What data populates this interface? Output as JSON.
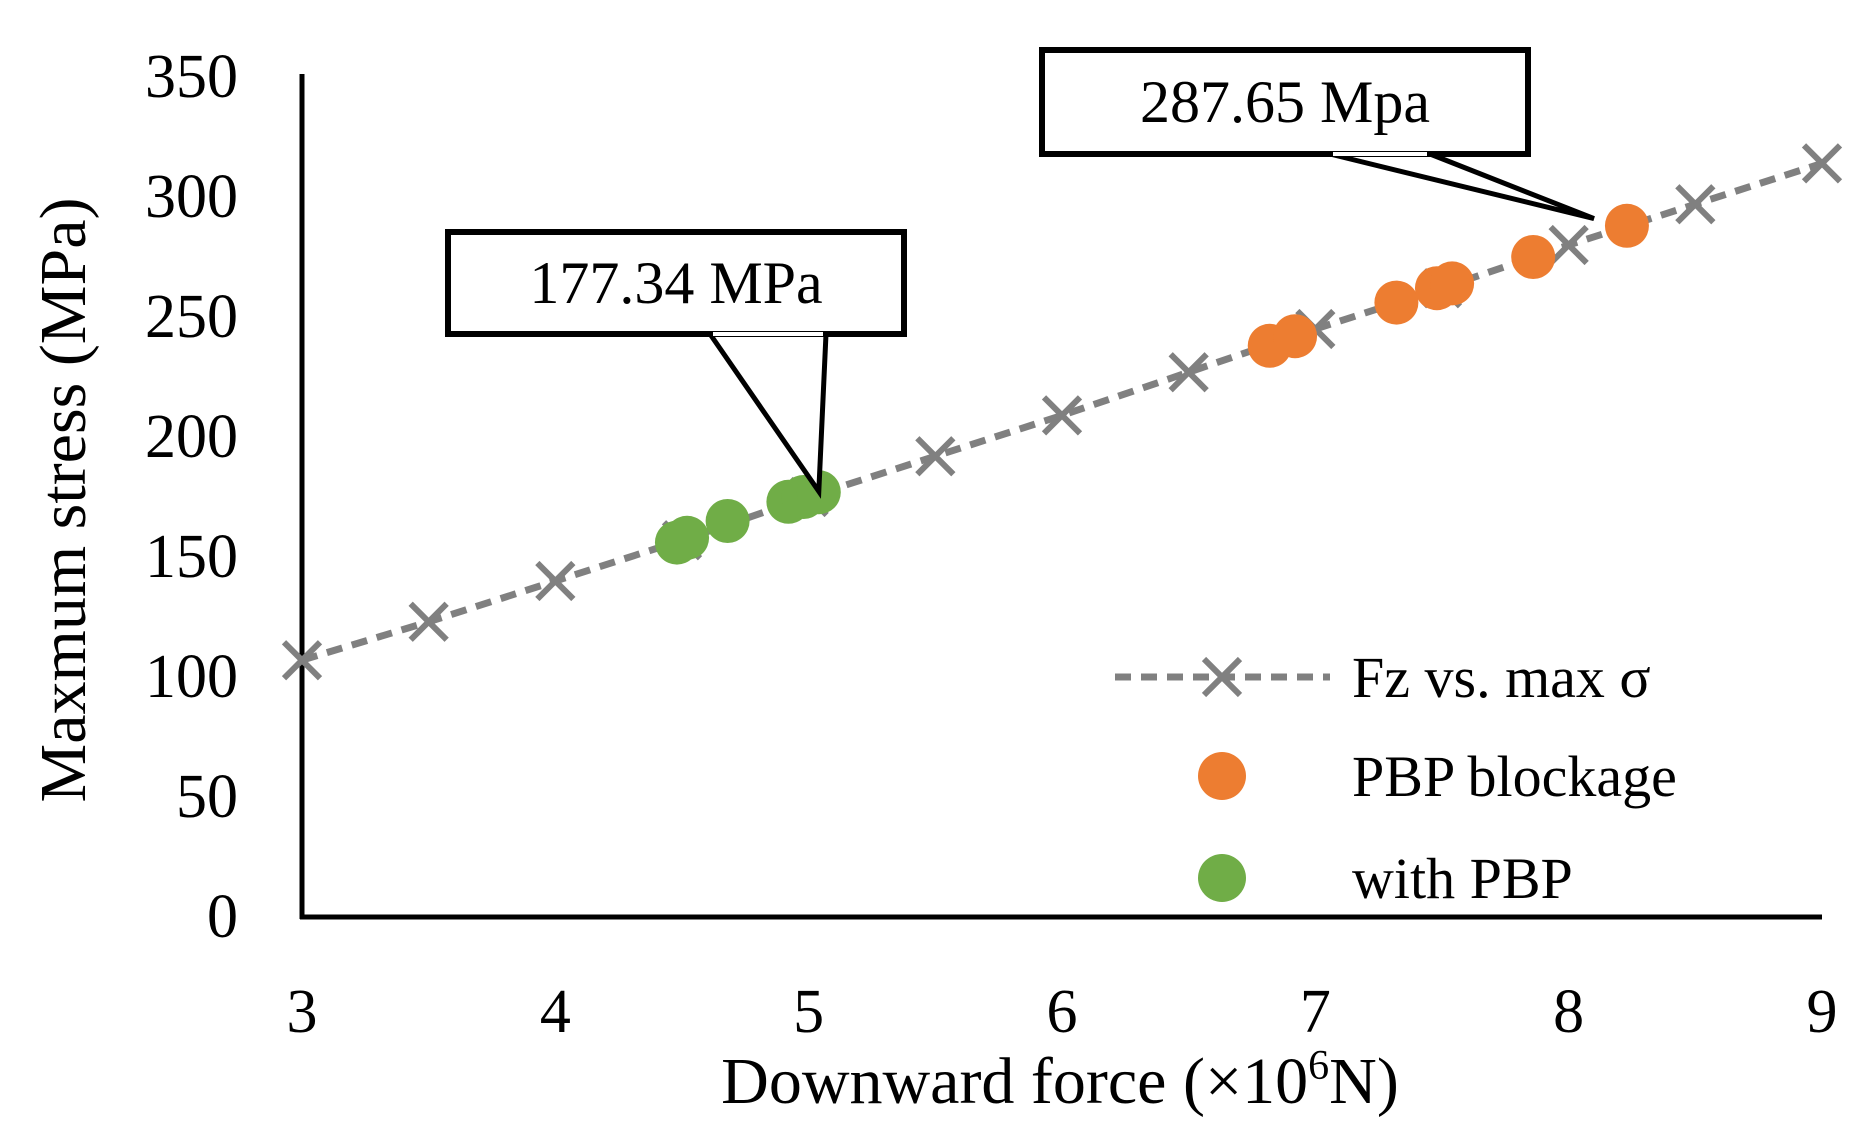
{
  "chart_data": {
    "type": "scatter",
    "xlabel_main": "Downward force (×10",
    "xlabel_sup": "6",
    "xlabel_tail": "N)",
    "ylabel": "Maxmum stress (MPa)",
    "xlim": [
      3,
      9
    ],
    "ylim": [
      0,
      350
    ],
    "x_ticks": [
      "3",
      "4",
      "5",
      "6",
      "7",
      "8",
      "9"
    ],
    "y_ticks": [
      "0",
      "50",
      "100",
      "150",
      "200",
      "250",
      "300",
      "350"
    ],
    "grid": false,
    "legend_position": "bottom-right",
    "series": [
      {
        "name": "Fz vs. max σ",
        "style": "dashed-line-x-markers",
        "color": "#808080",
        "x": [
          3.0,
          3.5,
          4.0,
          4.5,
          5.0,
          5.5,
          6.0,
          6.5,
          7.0,
          7.5,
          8.0,
          8.5,
          9.0
        ],
        "y": [
          107,
          123,
          140,
          157,
          175,
          192,
          209,
          227,
          245,
          262,
          280,
          297,
          314
        ]
      },
      {
        "name": "PBP blockage",
        "style": "filled-circles",
        "color": "#ED7D31",
        "x": [
          6.82,
          6.92,
          7.32,
          7.48,
          7.54,
          7.86,
          8.23
        ],
        "y": [
          238,
          242,
          256,
          262,
          264,
          275,
          288
        ]
      },
      {
        "name": "with PBP",
        "style": "filled-circles",
        "color": "#70AD47",
        "x": [
          4.48,
          4.52,
          4.68,
          4.92,
          4.98,
          5.04
        ],
        "y": [
          156,
          158,
          165,
          173,
          175,
          177
        ]
      }
    ],
    "annotations": [
      {
        "text": "177.34 MPa",
        "target_x": 5.04,
        "target_y": 177.34
      },
      {
        "text": "287.65 Mpa",
        "target_x": 8.1,
        "target_y": 291
      }
    ]
  }
}
